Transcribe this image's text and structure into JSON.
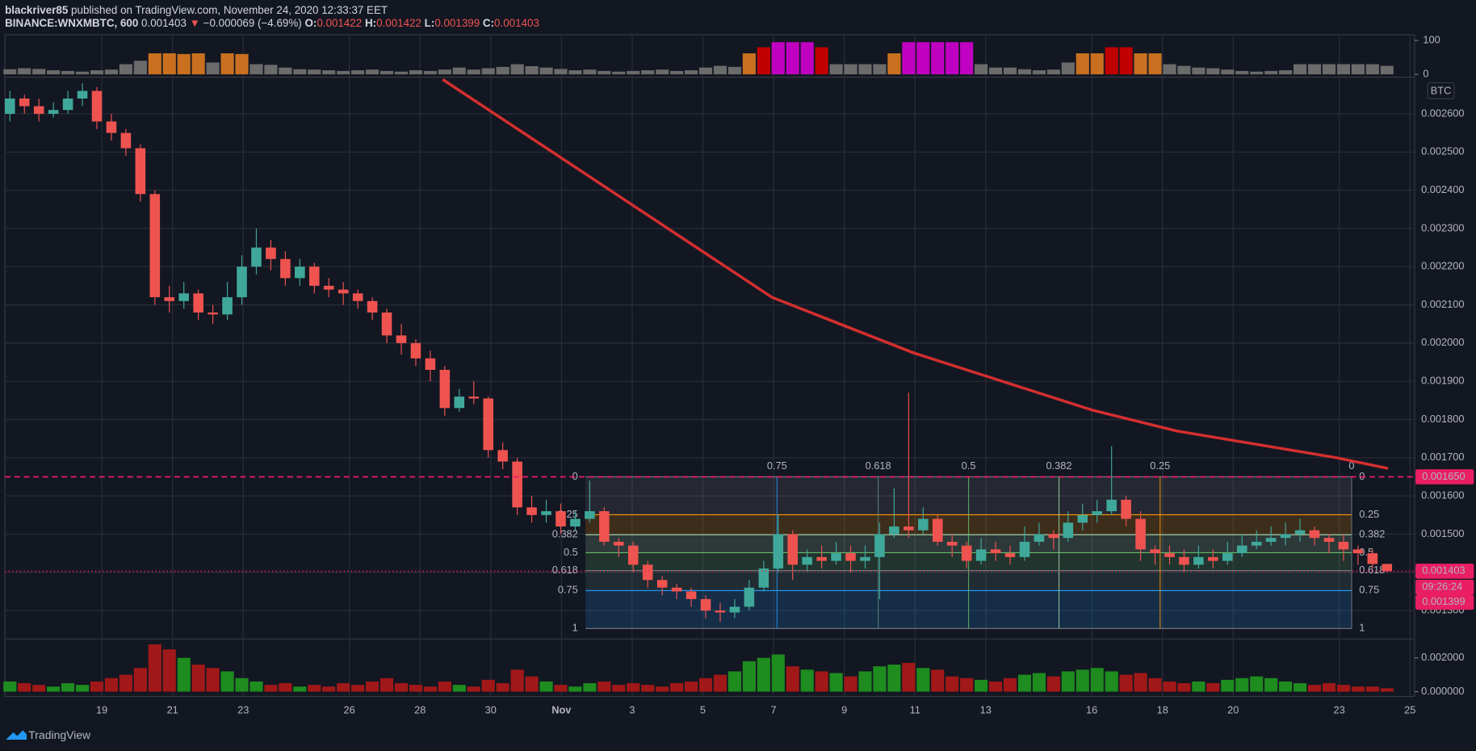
{
  "header": {
    "author": "blackriver85",
    "published": "published on TradingView.com, November 24, 2020 12:33:37 EET",
    "symbol": "BINANCE:WNXMBTC, 600",
    "last": 0.001403,
    "change": "−0.000069 (−4.69%)",
    "ohlc": [
      {
        "label": "O:",
        "value": 0.001422
      },
      {
        "label": "H:",
        "value": 0.001422
      },
      {
        "label": "L:",
        "value": 0.001399
      },
      {
        "label": "C:",
        "value": 0.001403
      }
    ]
  },
  "footer": {
    "brand": "TradingView"
  },
  "chart_data": {
    "type": "candlestick",
    "currency": "BTC",
    "grid": true,
    "xlim": [
      16.26,
      56.13
    ],
    "xticks": [
      19,
      21,
      23,
      26,
      28,
      30,
      {
        "value": 32,
        "label": "Nov"
      },
      {
        "value": 34,
        "label": "3"
      },
      {
        "value": 36,
        "label": "5"
      },
      {
        "value": 38,
        "label": "7"
      },
      {
        "value": 40,
        "label": "9"
      },
      {
        "value": 42,
        "label": "11"
      },
      {
        "value": 44,
        "label": "13"
      },
      {
        "value": 47,
        "label": "16"
      },
      {
        "value": 49,
        "label": "18"
      },
      {
        "value": 51,
        "label": "20"
      },
      {
        "value": 54,
        "label": "23"
      },
      {
        "value": 56,
        "label": "25"
      }
    ],
    "ylim": [
      0.001228,
      0.002691
    ],
    "yticks": [
      {
        "value": 0.0013,
        "label": "0.001300"
      },
      {
        "value": 0.0014,
        "label": "0.001400"
      },
      {
        "value": 0.0015,
        "label": "0.001500"
      },
      {
        "value": 0.0016,
        "label": "0.001600"
      },
      {
        "value": 0.0017,
        "label": "0.001700"
      },
      {
        "value": 0.0018,
        "label": "0.001800"
      },
      {
        "value": 0.0019,
        "label": "0.001900"
      },
      {
        "value": 0.002,
        "label": "0.002000"
      },
      {
        "value": 0.0021,
        "label": "0.002100"
      },
      {
        "value": 0.0022,
        "label": "0.002200"
      },
      {
        "value": 0.0023,
        "label": "0.002300"
      },
      {
        "value": 0.0024,
        "label": "0.002400"
      },
      {
        "value": 0.0025,
        "label": "0.002500"
      },
      {
        "value": 0.0026,
        "label": "0.002600"
      }
    ],
    "up_color": "#3fa89a",
    "down_color": "#ef5350",
    "candles": {
      "x": [
        16.4,
        16.81,
        17.22,
        17.63,
        18.04,
        18.45,
        18.86,
        19.27,
        19.68,
        20.09,
        20.5,
        20.91,
        21.32,
        21.73,
        22.14,
        22.55,
        22.96,
        23.37,
        23.78,
        24.19,
        24.6,
        25.01,
        25.42,
        25.83,
        26.24,
        26.65,
        27.06,
        27.47,
        27.88,
        28.29,
        28.7,
        29.11,
        29.52,
        29.93,
        30.34,
        30.75,
        31.16,
        31.57,
        31.98,
        32.39,
        32.8,
        33.21,
        33.62,
        34.03,
        34.44,
        34.85,
        35.26,
        35.67,
        36.08,
        36.49,
        36.9,
        37.31,
        37.72,
        38.13,
        38.54,
        38.95,
        39.36,
        39.77,
        40.18,
        40.59,
        41.0,
        41.41,
        41.82,
        42.23,
        42.64,
        43.05,
        43.46,
        43.87,
        44.28,
        44.69,
        45.1,
        45.51,
        45.92,
        46.33,
        46.74,
        47.15,
        47.56,
        47.97,
        48.38,
        48.79,
        49.2,
        49.61,
        50.02,
        50.43,
        50.84,
        51.25,
        51.66,
        52.07,
        52.48,
        52.89,
        53.3,
        53.71,
        54.12,
        54.53,
        54.94,
        55.35
      ],
      "open": [
        0.0026,
        0.00264,
        0.00262,
        0.0026,
        0.00261,
        0.00264,
        0.00266,
        0.00258,
        0.00255,
        0.00251,
        0.00239,
        0.00212,
        0.00211,
        0.00213,
        0.00208,
        0.002075,
        0.00212,
        0.0022,
        0.00225,
        0.00222,
        0.00217,
        0.0022,
        0.00215,
        0.00214,
        0.00213,
        0.00211,
        0.00208,
        0.00202,
        0.002,
        0.00196,
        0.00193,
        0.00183,
        0.00186,
        0.001855,
        0.00172,
        0.00169,
        0.00157,
        0.00155,
        0.00156,
        0.00152,
        0.00154,
        0.00156,
        0.00148,
        0.00147,
        0.00142,
        0.00138,
        0.00136,
        0.00135,
        0.00133,
        0.0013,
        0.001295,
        0.00131,
        0.00136,
        0.00141,
        0.0015,
        0.00142,
        0.00144,
        0.00143,
        0.00145,
        0.00143,
        0.00144,
        0.0015,
        0.00152,
        0.00151,
        0.00154,
        0.00148,
        0.00147,
        0.00143,
        0.00146,
        0.00145,
        0.00144,
        0.00148,
        0.0015,
        0.00149,
        0.00153,
        0.00155,
        0.00156,
        0.00159,
        0.00154,
        0.00146,
        0.00145,
        0.00144,
        0.00142,
        0.00144,
        0.00143,
        0.00145,
        0.00147,
        0.00148,
        0.00149,
        0.0015,
        0.00151,
        0.00149,
        0.00148,
        0.00146,
        0.00145,
        0.001422
      ],
      "high": [
        0.00266,
        0.00265,
        0.00264,
        0.00263,
        0.00266,
        0.00268,
        0.00267,
        0.0026,
        0.00256,
        0.00252,
        0.0024,
        0.00215,
        0.00216,
        0.00214,
        0.0021,
        0.00216,
        0.00223,
        0.0023,
        0.00227,
        0.00224,
        0.00222,
        0.00221,
        0.00217,
        0.00216,
        0.00214,
        0.00212,
        0.00209,
        0.00205,
        0.00201,
        0.00198,
        0.00194,
        0.00188,
        0.0019,
        0.00186,
        0.00174,
        0.0017,
        0.0016,
        0.00159,
        0.00158,
        0.00156,
        0.00164,
        0.00157,
        0.00149,
        0.00148,
        0.00143,
        0.00139,
        0.00137,
        0.00136,
        0.00134,
        0.00132,
        0.00133,
        0.00138,
        0.00143,
        0.00155,
        0.00151,
        0.00146,
        0.00147,
        0.00148,
        0.00147,
        0.00147,
        0.00153,
        0.00162,
        0.00187,
        0.00157,
        0.00155,
        0.0015,
        0.00148,
        0.00149,
        0.00148,
        0.00147,
        0.00152,
        0.00153,
        0.00151,
        0.00156,
        0.00158,
        0.00159,
        0.00173,
        0.0016,
        0.00156,
        0.00147,
        0.00147,
        0.00146,
        0.00147,
        0.00146,
        0.00148,
        0.0015,
        0.00151,
        0.00152,
        0.00153,
        0.00154,
        0.00152,
        0.0015,
        0.0015,
        0.00147,
        0.00146,
        0.001422
      ],
      "low": [
        0.00258,
        0.0026,
        0.00258,
        0.00259,
        0.0026,
        0.00262,
        0.00256,
        0.00253,
        0.00249,
        0.00237,
        0.0021,
        0.00208,
        0.00209,
        0.00206,
        0.00205,
        0.00206,
        0.0021,
        0.00218,
        0.00219,
        0.00215,
        0.00215,
        0.00213,
        0.00212,
        0.0021,
        0.00209,
        0.00206,
        0.002,
        0.00197,
        0.00194,
        0.0019,
        0.00181,
        0.00182,
        0.00184,
        0.0017,
        0.00167,
        0.00155,
        0.00153,
        0.00153,
        0.0015,
        0.00151,
        0.00153,
        0.00147,
        0.00144,
        0.0014,
        0.00136,
        0.00134,
        0.00133,
        0.00131,
        0.00128,
        0.00127,
        0.00128,
        0.0013,
        0.00135,
        0.0014,
        0.00138,
        0.0014,
        0.00141,
        0.00142,
        0.0014,
        0.00141,
        0.00133,
        0.00149,
        0.00149,
        0.0015,
        0.00147,
        0.00144,
        0.00141,
        0.00142,
        0.00143,
        0.00142,
        0.00143,
        0.00147,
        0.00146,
        0.00148,
        0.00151,
        0.00153,
        0.00155,
        0.00152,
        0.00143,
        0.00142,
        0.00142,
        0.0014,
        0.00141,
        0.00141,
        0.00142,
        0.00144,
        0.00146,
        0.00147,
        0.00147,
        0.00148,
        0.00147,
        0.00145,
        0.00143,
        0.00142,
        0.00141,
        0.001399
      ],
      "close": [
        0.00264,
        0.00262,
        0.0026,
        0.00261,
        0.00264,
        0.00266,
        0.00258,
        0.00255,
        0.00251,
        0.00239,
        0.00212,
        0.00211,
        0.00213,
        0.00208,
        0.002075,
        0.00212,
        0.0022,
        0.00225,
        0.00222,
        0.00217,
        0.0022,
        0.00215,
        0.00214,
        0.00213,
        0.00211,
        0.00208,
        0.00202,
        0.002,
        0.00196,
        0.00193,
        0.00183,
        0.00186,
        0.001855,
        0.00172,
        0.00169,
        0.00157,
        0.00155,
        0.00156,
        0.00152,
        0.00154,
        0.00156,
        0.00148,
        0.00147,
        0.00142,
        0.00138,
        0.00136,
        0.00135,
        0.00133,
        0.0013,
        0.001295,
        0.00131,
        0.00136,
        0.00141,
        0.0015,
        0.00142,
        0.00144,
        0.00143,
        0.00145,
        0.00143,
        0.00144,
        0.0015,
        0.00152,
        0.00151,
        0.00154,
        0.00148,
        0.00147,
        0.00143,
        0.00146,
        0.00145,
        0.00144,
        0.00148,
        0.0015,
        0.00149,
        0.00153,
        0.00155,
        0.00156,
        0.00159,
        0.00154,
        0.00146,
        0.00145,
        0.00144,
        0.00142,
        0.00144,
        0.00143,
        0.00145,
        0.00147,
        0.00148,
        0.00149,
        0.0015,
        0.00151,
        0.00149,
        0.00148,
        0.00146,
        0.00145,
        0.001422,
        0.001403
      ]
    },
    "ma": {
      "color": "#d32f2f",
      "x": [
        28.64,
        37.95,
        41.94,
        47.0,
        49.4,
        53.92,
        55.38
      ],
      "values": [
        0.00269,
        0.00212,
        0.001975,
        0.001825,
        0.00177,
        0.0017,
        0.001672
      ]
    },
    "fib": {
      "x_left": 32.68,
      "x_right": 54.35,
      "price_top": 0.00165,
      "price_bottom": 0.001253,
      "levels": [
        0,
        0.25,
        0.382,
        0.5,
        0.618,
        0.75,
        1
      ],
      "colors": [
        "#787b86",
        "#ff9800",
        "#a5d6a7",
        "#66bb6a",
        "#5d8a80",
        "#2196f3",
        "#787b86"
      ],
      "time_levels": [
        0,
        0.25,
        0.382,
        0.5,
        0.618,
        0.75
      ],
      "time_colors": [
        "#787b86",
        "#ff9800",
        "#a5d6a7",
        "#66bb6a",
        "#5d8a80",
        "#2196f3"
      ]
    },
    "price_lines": [
      {
        "value": 0.00165,
        "label": "0.001650",
        "style": "dashed",
        "color": "#e91e63"
      },
      {
        "value": 0.001403,
        "style": "dotted",
        "color": "#e91e63"
      }
    ],
    "countdown": "09:26:24",
    "low_price": 0.001399,
    "volume": {
      "ylim": [
        -0.00017,
        0.00306
      ],
      "yticks": [
        {
          "value": 0,
          "label": "0.000000"
        },
        {
          "value": 0.002,
          "label": "0.002000"
        }
      ],
      "up_color": "#1e8c1e",
      "down_color": "#a11818",
      "values": [
        0.0006,
        0.0005,
        0.0004,
        0.0003,
        0.0005,
        0.0004,
        0.0006,
        0.0008,
        0.001,
        0.0014,
        0.0028,
        0.0025,
        0.002,
        0.0016,
        0.0014,
        0.0012,
        0.0008,
        0.0006,
        0.0004,
        0.0005,
        0.0003,
        0.0004,
        0.0003,
        0.0005,
        0.0004,
        0.0006,
        0.0008,
        0.0005,
        0.0004,
        0.0003,
        0.0006,
        0.0004,
        0.0003,
        0.0007,
        0.0005,
        0.0013,
        0.0009,
        0.0006,
        0.0004,
        0.0003,
        0.0005,
        0.0006,
        0.0004,
        0.0005,
        0.0004,
        0.0003,
        0.0005,
        0.0006,
        0.0008,
        0.001,
        0.0012,
        0.0018,
        0.002,
        0.0022,
        0.0015,
        0.0013,
        0.0012,
        0.0011,
        0.0009,
        0.0012,
        0.0015,
        0.0016,
        0.0017,
        0.0014,
        0.0013,
        0.0009,
        0.0008,
        0.0007,
        0.0006,
        0.0008,
        0.001,
        0.0011,
        0.0009,
        0.0012,
        0.0013,
        0.0014,
        0.0012,
        0.001,
        0.0011,
        0.0008,
        0.0006,
        0.0005,
        0.0006,
        0.0005,
        0.0007,
        0.0008,
        0.0009,
        0.0008,
        0.0006,
        0.0005,
        0.0004,
        0.0005,
        0.0004,
        0.0003,
        0.0003,
        0.0002
      ]
    },
    "oscillator": {
      "ylim": [
        -2.8,
        113.9
      ],
      "yticks": [
        0,
        100
      ],
      "color_bands": [
        {
          "min": 90,
          "color": "#c000c0"
        },
        {
          "min": 75,
          "color": "#c00000"
        },
        {
          "min": 55,
          "color": "#c87020"
        },
        {
          "min": 0,
          "color": "#6b6b6b"
        }
      ],
      "values": [
        15,
        18,
        16,
        12,
        10,
        8,
        12,
        14,
        30,
        40,
        62,
        62,
        60,
        62,
        35,
        62,
        60,
        30,
        28,
        20,
        15,
        14,
        12,
        10,
        12,
        14,
        10,
        8,
        12,
        10,
        14,
        20,
        14,
        18,
        22,
        30,
        24,
        20,
        16,
        12,
        14,
        10,
        8,
        10,
        12,
        14,
        10,
        12,
        20,
        25,
        22,
        62,
        80,
        95,
        95,
        95,
        80,
        30,
        30,
        30,
        30,
        62,
        95,
        95,
        95,
        95,
        95,
        30,
        20,
        20,
        15,
        12,
        14,
        35,
        62,
        62,
        80,
        80,
        62,
        62,
        30,
        25,
        20,
        18,
        14,
        10,
        8,
        10,
        12,
        30,
        30,
        30,
        30,
        30,
        30,
        25
      ]
    }
  }
}
